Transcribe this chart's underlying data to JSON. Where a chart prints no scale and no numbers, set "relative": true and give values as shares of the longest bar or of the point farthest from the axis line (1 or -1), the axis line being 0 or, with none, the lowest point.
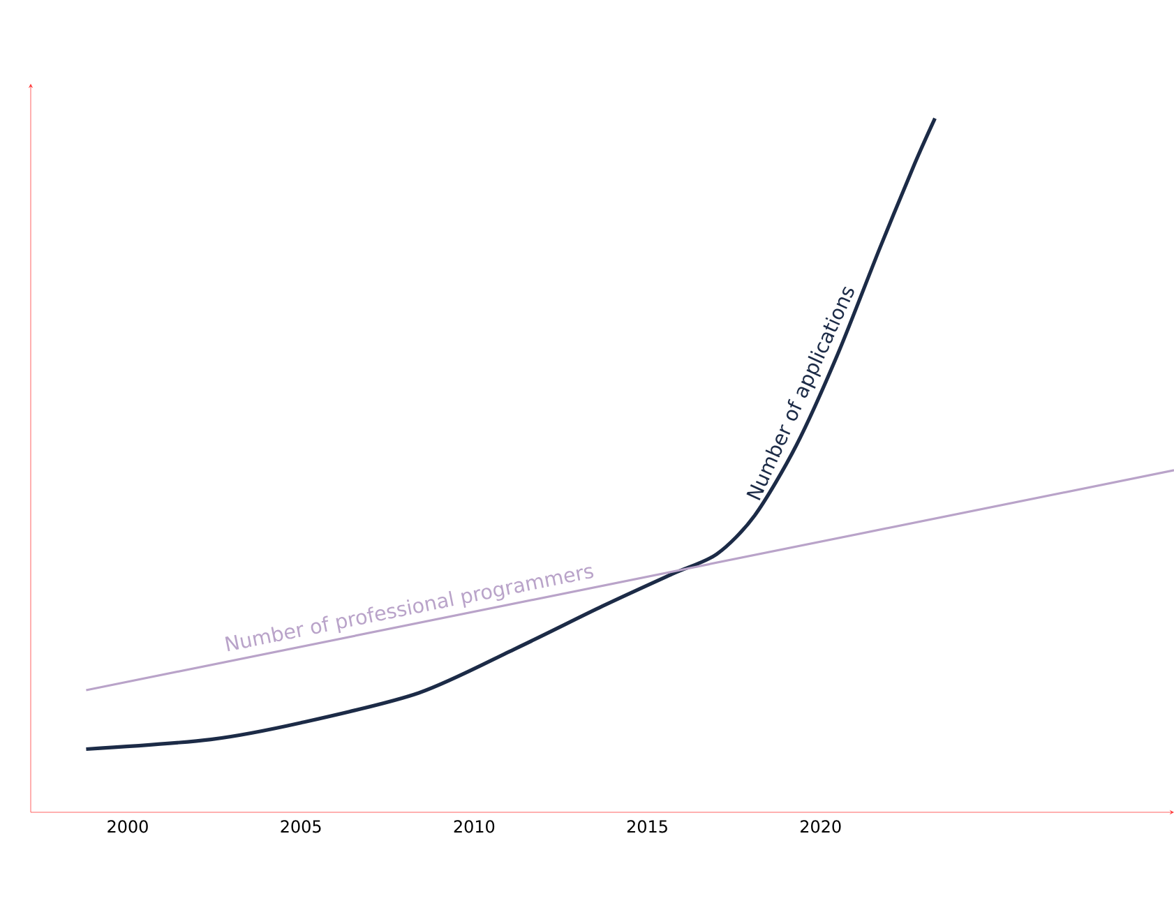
{
  "chart_data": {
    "type": "line",
    "relative": true,
    "xlim": [
      1997.2,
      2030.2
    ],
    "xticks": [
      2000,
      2005,
      2010,
      2015,
      2020
    ],
    "grid": false,
    "marker": "none",
    "series": [
      {
        "name": "Number of applications",
        "color": "#1c2b47",
        "x": [
          1998.8,
          2002.4,
          2005.0,
          2008.4,
          2011.2,
          2013.7,
          2015.7,
          2017.0,
          2018.1,
          2019.3,
          2020.5,
          2021.7,
          2022.7,
          2023.3
        ],
        "values": [
          0.091,
          0.105,
          0.129,
          0.172,
          0.236,
          0.297,
          0.343,
          0.372,
          0.428,
          0.529,
          0.661,
          0.812,
          0.933,
          1
        ]
      },
      {
        "name": "Number of professional programmers",
        "color": "#b9a3c9",
        "x": [
          1998.8,
          2030.2
        ],
        "values": [
          0.176,
          0.493
        ]
      }
    ]
  }
}
